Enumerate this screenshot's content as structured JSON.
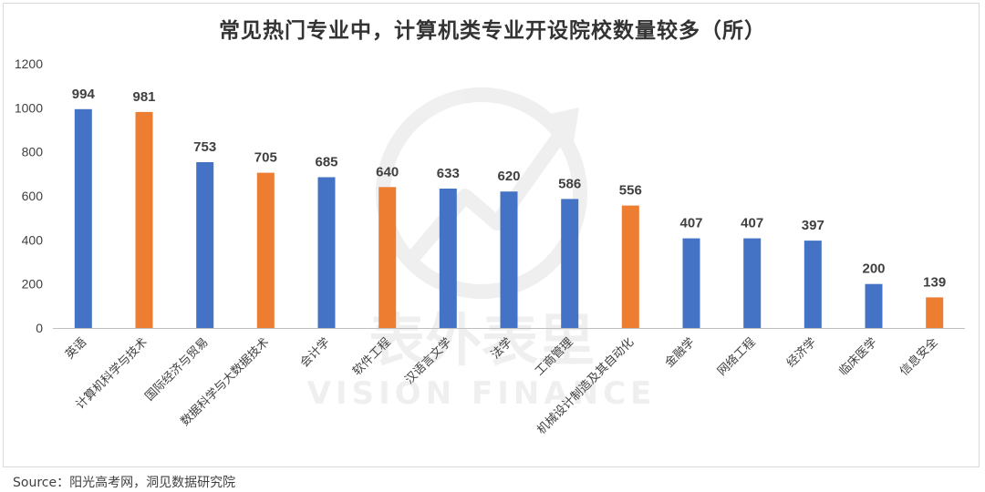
{
  "chart_data": {
    "type": "bar",
    "title": "常见热门专业中，计算机类专业开设院校数量较多（所）",
    "xlabel": "",
    "ylabel": "",
    "ylim": [
      0,
      1200
    ],
    "yticks": [
      0,
      200,
      400,
      600,
      800,
      1000,
      1200
    ],
    "grid": false,
    "legend": "none",
    "categories": [
      "英语",
      "计算机科学与技术",
      "国际经济与贸易",
      "数据科学与大数据技术",
      "会计学",
      "软件工程",
      "汉语言文学",
      "法学",
      "工商管理",
      "机械设计制造及其自动化",
      "金融学",
      "网络工程",
      "经济学",
      "临床医学",
      "信息安全"
    ],
    "values": [
      994,
      981,
      753,
      705,
      685,
      640,
      633,
      620,
      586,
      556,
      407,
      407,
      397,
      200,
      139
    ],
    "highlight": [
      false,
      true,
      false,
      true,
      false,
      true,
      false,
      false,
      false,
      true,
      false,
      false,
      false,
      false,
      true
    ],
    "colors": {
      "default": "#4472C4",
      "highlight": "#ED7D31",
      "axis": "#bfbfbf",
      "label": "#404040"
    }
  },
  "source": "Source：阳光高考网，洞见数据研究院",
  "watermark": {
    "text": "表外表里",
    "subtext": "VISION FINANCE"
  }
}
